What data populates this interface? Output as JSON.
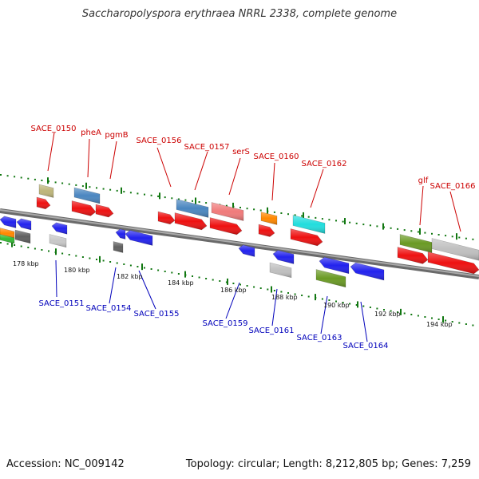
{
  "header": {
    "title": "Saccharopolyspora erythraea NRRL 2338, complete genome"
  },
  "footer": {
    "accession": "Accession: NC_009142",
    "stats": "Topology: circular; Length: 8,212,805 bp; Genes: 7,259"
  },
  "colors": {
    "label_forward": "#cc0000",
    "label_reverse": "#0000bb",
    "tick": "#117711",
    "backbone": "#8a8a8a"
  },
  "ticks": [
    "178 kbp",
    "180 kbp",
    "182 kbp",
    "184 kbp",
    "186 kbp",
    "188 kbp",
    "190 kbp",
    "192 kbp",
    "194 kbp"
  ],
  "gene_labels_top": [
    "SACE_0150",
    "pheA",
    "pgmB",
    "SACE_0156",
    "SACE_0157",
    "serS",
    "SACE_0160",
    "SACE_0162",
    "glf",
    "SACE_0166"
  ],
  "gene_labels_bottom": [
    "SACE_0151",
    "SACE_0154",
    "SACE_0155",
    "SACE_0159",
    "SACE_0161",
    "SACE_0163",
    "SACE_0164"
  ]
}
